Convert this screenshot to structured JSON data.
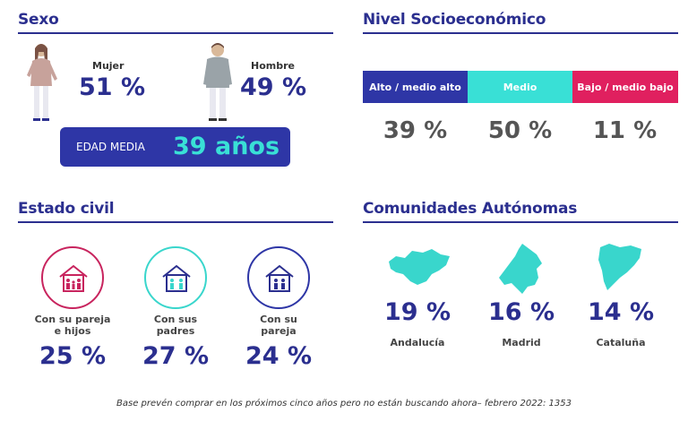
{
  "sexo": {
    "title": "Sexo",
    "female_label": "Mujer",
    "female_pct": "51 %",
    "male_label": "Hombre",
    "male_pct": "49 %",
    "age_label": "EDAD MEDIA",
    "age_value": "39 años"
  },
  "nse": {
    "title": "Nivel Socioeconómico",
    "levels": [
      {
        "label": "Alto / medio alto",
        "pct": "39 %",
        "color": "#2e36a6"
      },
      {
        "label": "Medio",
        "pct": "50 %",
        "color": "#39e0d6"
      },
      {
        "label": "Bajo / medio bajo",
        "pct": "11 %",
        "color": "#e0205f"
      }
    ]
  },
  "civil": {
    "title": "Estado civil",
    "items": [
      {
        "label_line1": "Con su pareja",
        "label_line2": "e hijos",
        "pct": "25 %",
        "color": "#c8245e",
        "icon": "family-house-icon"
      },
      {
        "label_line1": "Con sus",
        "label_line2": "padres",
        "pct": "27 %",
        "color": "#39d6cc",
        "icon": "parents-house-icon"
      },
      {
        "label_line1": "Con su",
        "label_line2": "pareja",
        "pct": "24 %",
        "color": "#2e36a6",
        "icon": "couple-house-icon"
      }
    ]
  },
  "ccaa": {
    "title": "Comunidades Autónomas",
    "items": [
      {
        "name": "Andalucía",
        "pct": "19 %",
        "icon": "andalucia-map-icon"
      },
      {
        "name": "Madrid",
        "pct": "16 %",
        "icon": "madrid-map-icon"
      },
      {
        "name": "Cataluña",
        "pct": "14 %",
        "icon": "cataluna-map-icon"
      }
    ],
    "map_color": "#39d6cc"
  },
  "footnote": "Base prevén comprar en los próximos cinco años pero no están buscando ahora– febrero 2022: 1353"
}
